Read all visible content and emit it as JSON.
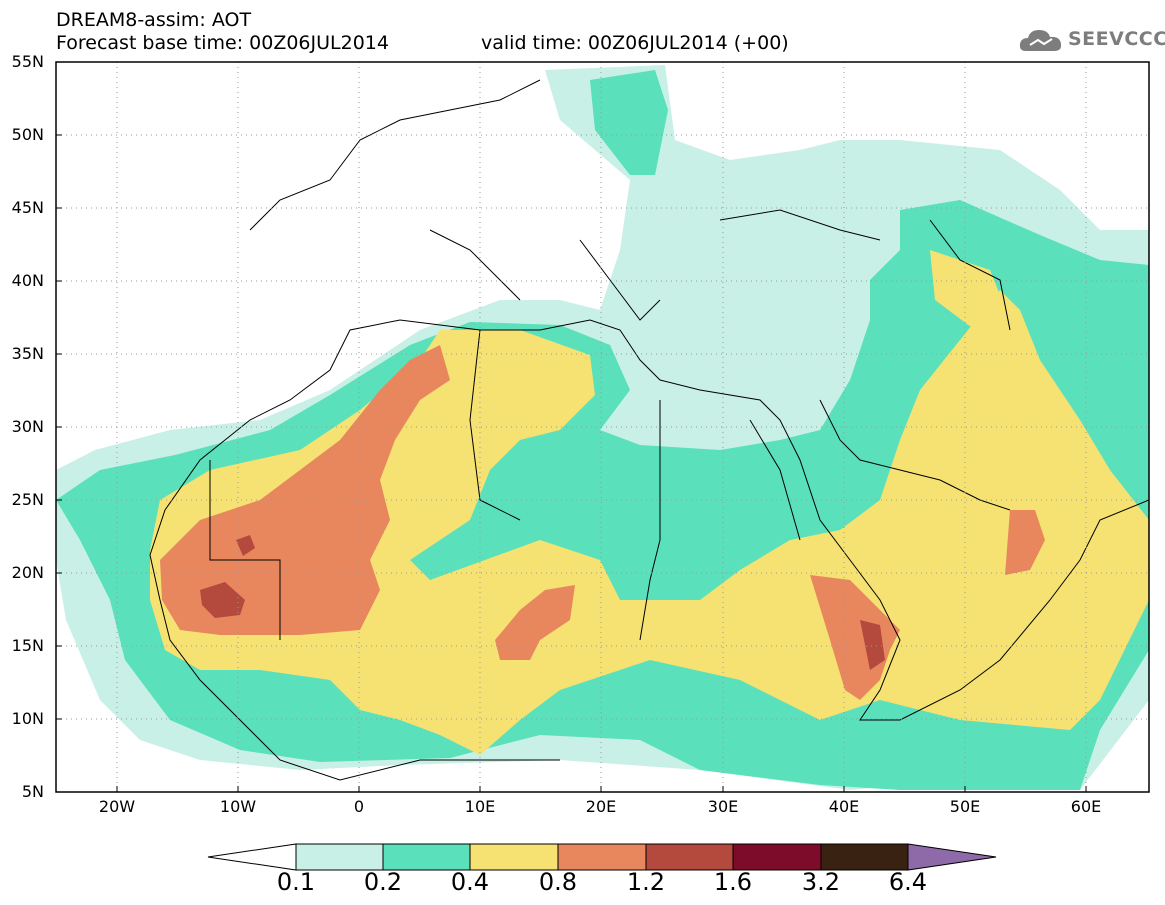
{
  "header": {
    "title_line1": "DREAM8-assim: AOT",
    "title_line2": "Forecast base time: 00Z06JUL2014",
    "valid_time": "valid time: 00Z06JUL2014 (+00)",
    "logo_text": "SEEVCCC",
    "logo_icon": "cloud-icon"
  },
  "map": {
    "lat_range": [
      5,
      55
    ],
    "lon_range": [
      -25,
      65
    ],
    "lat_labels": [
      "55N",
      "50N",
      "45N",
      "40N",
      "35N",
      "30N",
      "25N",
      "20N",
      "15N",
      "10N",
      "5N"
    ],
    "lon_labels": [
      "20W",
      "10W",
      "0",
      "10E",
      "20E",
      "30E",
      "40E",
      "50E",
      "60E"
    ],
    "gridlines": "dotted"
  },
  "colorbar": {
    "labels": [
      "0.1",
      "0.2",
      "0.4",
      "0.8",
      "1.2",
      "1.6",
      "3.2",
      "6.4"
    ],
    "colors": [
      "#c8f0e6",
      "#5ae0bb",
      "#f5e273",
      "#e8875e",
      "#b4493e",
      "#7d0c2b",
      "#3a2212",
      "#8f6aa8"
    ],
    "extends": "both"
  }
}
